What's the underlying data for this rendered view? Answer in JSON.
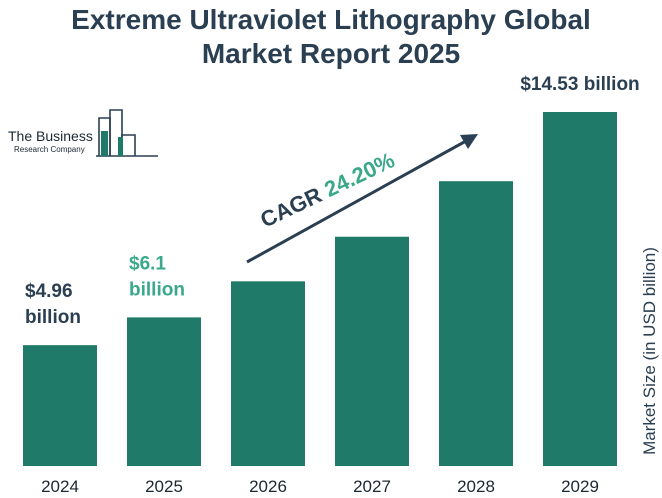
{
  "title_lines": [
    "Extreme Ultraviolet Lithography Global",
    "Market Report 2025"
  ],
  "logo": {
    "line1": "The Business",
    "line2": "Research Company"
  },
  "cagr": {
    "prefix": "CAGR ",
    "value": "24.20%"
  },
  "colors": {
    "bar": "#1f7a6a",
    "title": "#2a3f52",
    "accent": "#3aa889",
    "dark": "#2a3f52"
  },
  "chart_data": {
    "type": "bar",
    "title": "Extreme Ultraviolet Lithography Global Market Report 2025",
    "xlabel": "",
    "ylabel": "Market Size (in USD billion)",
    "categories": [
      "2024",
      "2025",
      "2026",
      "2027",
      "2028",
      "2029"
    ],
    "values": [
      4.96,
      6.1,
      7.58,
      9.41,
      11.69,
      14.53
    ],
    "ylim": [
      0,
      16
    ],
    "grid": false,
    "data_labels": [
      {
        "category": "2024",
        "lines": [
          "$4.96",
          "billion"
        ],
        "color": "#2a3f52"
      },
      {
        "category": "2025",
        "lines": [
          "$6.1",
          "billion"
        ],
        "color": "#3aa889"
      },
      {
        "category": "2029",
        "lines": [
          "$14.53 billion"
        ],
        "color": "#2a3f52"
      }
    ]
  }
}
